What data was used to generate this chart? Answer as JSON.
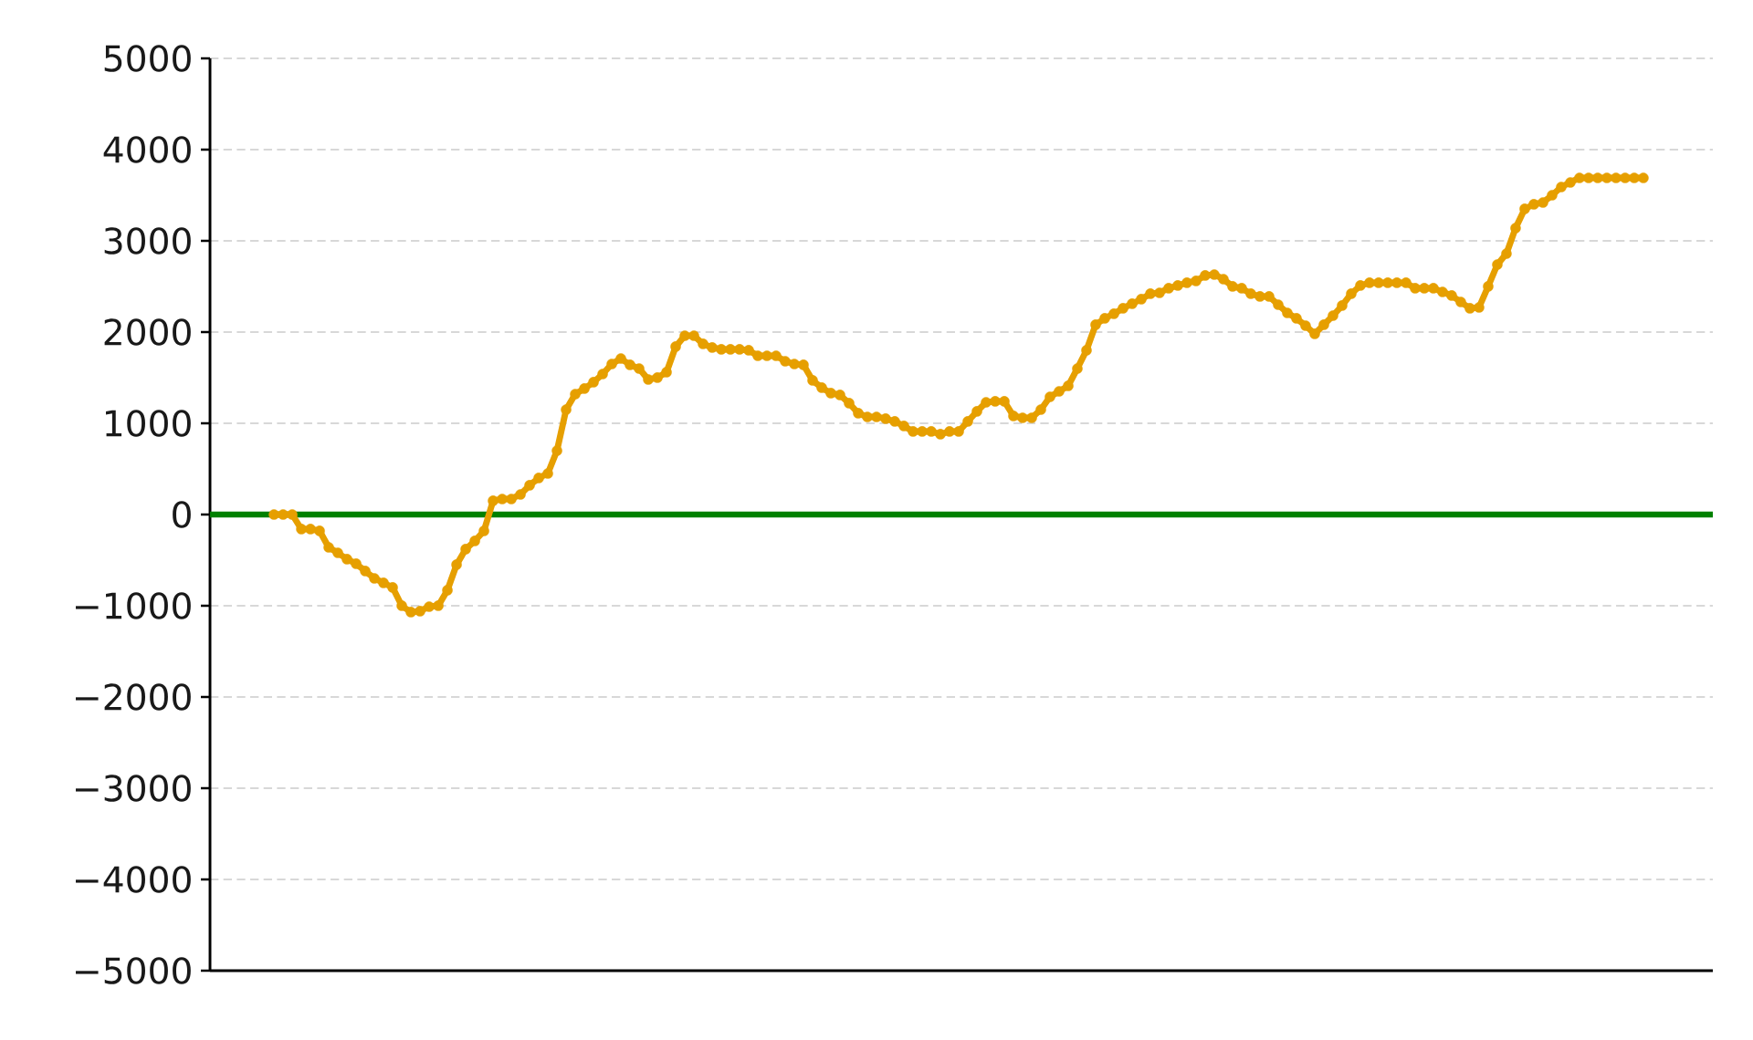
{
  "chart_data": {
    "type": "line",
    "categories": [
      null,
      null,
      null,
      null,
      null,
      null,
      null,
      null,
      null,
      null,
      null,
      null,
      null,
      null,
      null,
      null,
      null,
      null,
      null,
      null,
      null,
      null,
      null,
      null,
      null,
      null,
      null,
      null,
      null,
      null,
      null,
      null,
      null,
      null,
      null,
      null,
      null,
      null,
      null,
      null,
      null,
      null,
      null,
      null,
      null,
      null,
      null,
      null,
      null,
      null,
      null,
      null,
      null,
      null,
      null,
      null,
      null,
      null,
      null,
      null,
      null,
      null,
      null,
      null,
      null,
      null,
      null,
      null,
      null,
      null,
      null,
      null,
      null,
      null,
      null,
      null,
      null,
      null,
      null,
      null,
      null,
      null,
      null,
      null,
      null,
      null,
      null,
      null,
      null,
      null,
      null,
      null,
      null,
      null,
      null,
      null,
      null,
      null,
      null,
      null,
      null,
      null,
      null,
      null,
      null,
      null,
      null,
      null,
      null,
      null,
      null,
      null,
      null,
      null,
      null,
      null,
      null,
      null,
      null,
      null,
      null,
      null,
      null,
      null,
      null,
      null,
      null,
      null,
      null,
      null,
      null,
      null,
      null,
      null,
      null,
      null,
      null,
      null,
      null,
      null,
      null,
      null,
      null,
      null,
      null,
      null,
      null,
      null,
      null,
      null,
      null
    ],
    "series": [
      {
        "color": "#e69f00",
        "values": [
          0,
          0,
          0,
          -160,
          -160,
          -180,
          -360,
          -420,
          -490,
          -540,
          -620,
          -700,
          -750,
          -800,
          -1000,
          -1070,
          -1060,
          -1010,
          -1000,
          -830,
          -550,
          -380,
          -290,
          -180,
          150,
          170,
          170,
          220,
          320,
          400,
          450,
          700,
          1150,
          1320,
          1380,
          1450,
          1540,
          1650,
          1710,
          1640,
          1600,
          1480,
          1500,
          1560,
          1840,
          1960,
          1960,
          1870,
          1830,
          1810,
          1810,
          1810,
          1800,
          1740,
          1740,
          1740,
          1680,
          1650,
          1640,
          1470,
          1390,
          1330,
          1310,
          1220,
          1110,
          1070,
          1070,
          1050,
          1020,
          970,
          910,
          910,
          910,
          880,
          910,
          910,
          1020,
          1130,
          1230,
          1240,
          1240,
          1080,
          1060,
          1060,
          1150,
          1290,
          1350,
          1410,
          1600,
          1800,
          2080,
          2150,
          2200,
          2260,
          2310,
          2360,
          2420,
          2430,
          2480,
          2510,
          2540,
          2560,
          2620,
          2630,
          2580,
          2500,
          2480,
          2420,
          2390,
          2390,
          2300,
          2210,
          2150,
          2070,
          1980,
          2080,
          2180,
          2290,
          2420,
          2510,
          2540,
          2540,
          2540,
          2540,
          2540,
          2480,
          2480,
          2480,
          2440,
          2400,
          2330,
          2260,
          2270,
          2500,
          2740,
          2860,
          3140,
          3350,
          3400,
          3420,
          3500,
          3590,
          3640,
          3690,
          3690,
          3690,
          3690,
          3690,
          3690,
          3690,
          3690
        ]
      }
    ],
    "ylim": [
      -5000,
      5000
    ],
    "yticks": [
      {
        "value": -5000,
        "label": "−5000"
      },
      {
        "value": -4000,
        "label": "−4000"
      },
      {
        "value": -3000,
        "label": "−3000"
      },
      {
        "value": -2000,
        "label": "−2000"
      },
      {
        "value": -1000,
        "label": "−1000"
      },
      0,
      1000,
      2000,
      3000,
      4000,
      5000
    ],
    "ref_lines": [
      {
        "axis": "y",
        "value": 0,
        "color": "#008000"
      }
    ],
    "grid": "y",
    "marker": "circle",
    "line_style": "solid",
    "tick_labels": "y"
  }
}
